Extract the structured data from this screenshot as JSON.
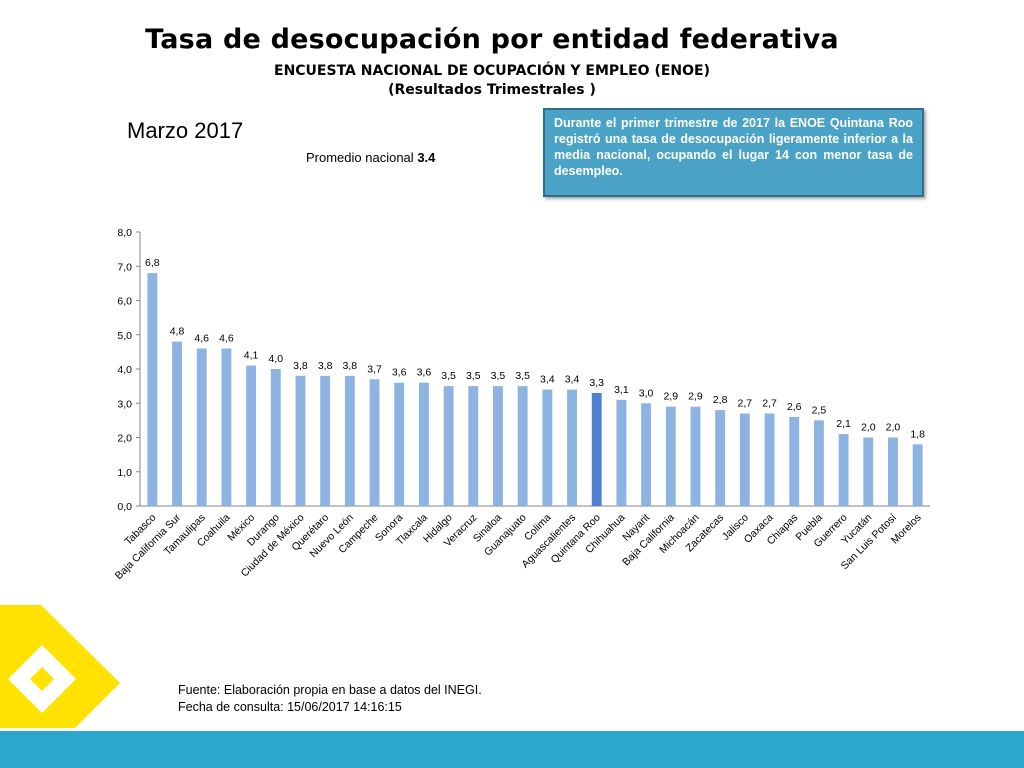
{
  "header": {
    "title": "Tasa de desocupación por entidad federativa",
    "subtitle_line1": "ENCUESTA NACIONAL DE OCUPACIÓN Y EMPLEO (ENOE)",
    "subtitle_line2": "(Resultados Trimestrales  )"
  },
  "period": "Marzo 2017",
  "national_average": {
    "label": "Promedio nacional",
    "value": "3.4"
  },
  "note": "Durante el primer trimestre de 2017 la ENOE Quintana Roo registró una tasa de desocupación ligeramente inferior a la media nacional, ocupando el lugar 14 con menor tasa de desempleo.",
  "footer": {
    "source": "Fuente: Elaboración propia en base a datos del INEGI.",
    "date": "Fecha de consulta: 15/06/2017 14:16:15"
  },
  "colors": {
    "bar": "#8db3e2",
    "highlight_bar": "#4f81d0",
    "note_bg": "#4aa3c6",
    "logo": "#ffe200",
    "band": "#2aa7cf"
  },
  "chart_data": {
    "type": "bar",
    "categories": [
      "Tabasco",
      "Baja California Sur",
      "Tamaulipas",
      "Coahuila",
      "México",
      "Durango",
      "Ciudad de México",
      "Querétaro",
      "Nuevo León",
      "Campeche",
      "Sonora",
      "Tlaxcala",
      "Hidalgo",
      "Veracruz",
      "Sinaloa",
      "Guanajuato",
      "Colima",
      "Aguascalientes",
      "Quintana Roo",
      "Chihuahua",
      "Nayarit",
      "Baja California",
      "Michoacán",
      "Zacatecas",
      "Jalisco",
      "Oaxaca",
      "Chiapas",
      "Puebla",
      "Guerrero",
      "Yucatán",
      "San Luis Potosí",
      "Morelos"
    ],
    "values": [
      6.8,
      4.8,
      4.6,
      4.6,
      4.1,
      4.0,
      3.8,
      3.8,
      3.8,
      3.7,
      3.6,
      3.6,
      3.5,
      3.5,
      3.5,
      3.5,
      3.4,
      3.4,
      3.3,
      3.1,
      3.0,
      2.9,
      2.9,
      2.8,
      2.7,
      2.7,
      2.6,
      2.5,
      2.1,
      2.0,
      2.0,
      1.8
    ],
    "labels": [
      "6,8",
      "4,8",
      "4,6",
      "4,6",
      "4,1",
      "4,0",
      "3,8",
      "3,8",
      "3,8",
      "3,7",
      "3,6",
      "3,6",
      "3,5",
      "3,5",
      "3,5",
      "3,5",
      "3,4",
      "3,4",
      "3,3",
      "3,1",
      "3,0",
      "2,9",
      "2,9",
      "2,8",
      "2,7",
      "2,7",
      "2,6",
      "2,5",
      "2,1",
      "2,0",
      "2,0",
      "1,8"
    ],
    "highlight": "Quintana Roo",
    "ylim": [
      0,
      8
    ],
    "yticks": [
      "0,0",
      "1,0",
      "2,0",
      "3,0",
      "4,0",
      "5,0",
      "6,0",
      "7,0",
      "8,0"
    ],
    "grid": false
  }
}
